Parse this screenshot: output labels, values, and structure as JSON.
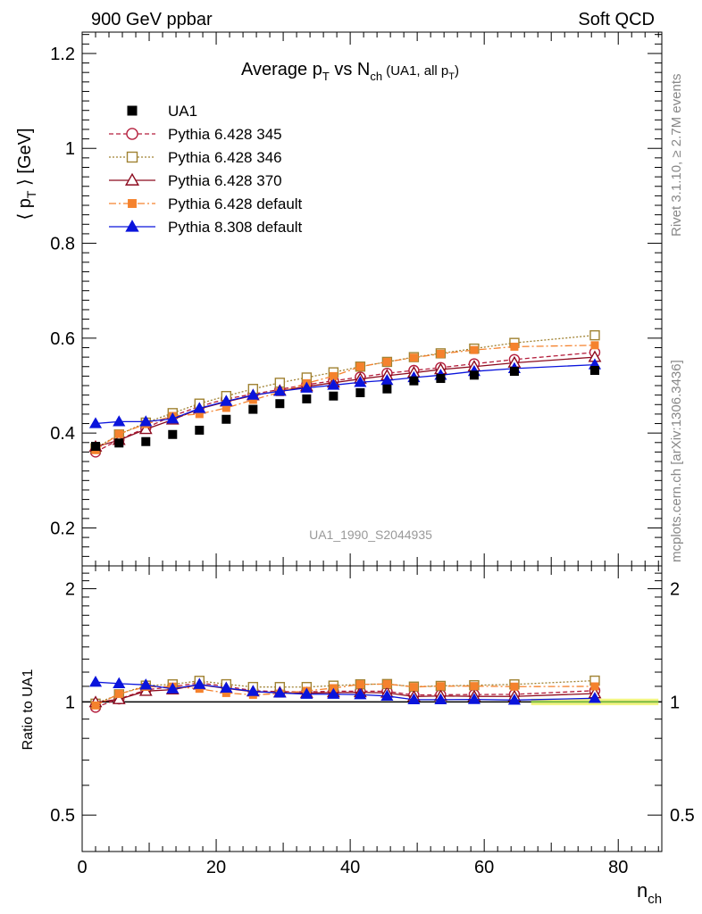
{
  "header": {
    "left": "900 GeV ppbar",
    "right": "Soft QCD"
  },
  "side_labels": {
    "rivet": "Rivet 3.1.10, ≥ 2.7M events",
    "mcplots": "mcplots.cern.ch [arXiv:1306.3436]"
  },
  "chart_data": {
    "type": "line",
    "title": "Average p_T vs N_ch (UA1, all p_T)",
    "title_parts": {
      "main": "Average p",
      "main_sub": "T",
      "mid": " vs N",
      "mid_sub": "ch",
      "small": " (UA1, all p",
      "small_sub": "T",
      "small_end": ")"
    },
    "analysis_label": "UA1_1990_S2044935",
    "xlabel": "n_ch",
    "xlabel_parts": {
      "main": "n",
      "sub": "ch"
    },
    "ylabel": "⟨ p_T ⟩ [GeV]",
    "ylabel_parts": {
      "pre": "⟨ p",
      "sub": "T",
      "post": " ⟩ [GeV]"
    },
    "ratio_ylabel": "Ratio to UA1",
    "xlim": [
      0,
      86.5
    ],
    "ylim": [
      0.12,
      1.245
    ],
    "ratio_ylim": [
      0.4,
      2.3
    ],
    "x_ticks": [
      "0",
      "20",
      "40",
      "60",
      "80"
    ],
    "y_ticks": [
      "0.2",
      "0.4",
      "0.6",
      "0.8",
      "1",
      "1.2"
    ],
    "ratio_ticks": [
      "0.5",
      "1",
      "2"
    ],
    "legend_position": "top-left",
    "data": {
      "name": "UA1",
      "x": [
        2,
        5.5,
        9.5,
        13.5,
        17.5,
        21.5,
        25.5,
        29.5,
        33.5,
        37.5,
        41.5,
        45.5,
        49.5,
        53.5,
        58.5,
        64.5,
        76.5
      ],
      "y": [
        0.372,
        0.379,
        0.382,
        0.397,
        0.406,
        0.429,
        0.45,
        0.462,
        0.472,
        0.478,
        0.485,
        0.493,
        0.51,
        0.515,
        0.522,
        0.53,
        0.532
      ]
    },
    "band": {
      "x": [
        67,
        86
      ],
      "lo": 0.98,
      "hi": 1.02
    },
    "series": [
      {
        "name": "Pythia 6.428 345",
        "color": "#b41e3c",
        "dash": "5,3",
        "marker": "circle-open",
        "y": [
          0.36,
          0.386,
          0.411,
          0.436,
          0.456,
          0.472,
          0.482,
          0.492,
          0.502,
          0.51,
          0.518,
          0.526,
          0.532,
          0.538,
          0.546,
          0.555,
          0.57
        ]
      },
      {
        "name": "Pythia 6.428 346",
        "color": "#a08232",
        "dash": "2,2",
        "marker": "square-open",
        "y": [
          0.368,
          0.397,
          0.422,
          0.442,
          0.462,
          0.478,
          0.493,
          0.506,
          0.517,
          0.528,
          0.54,
          0.55,
          0.56,
          0.568,
          0.578,
          0.59,
          0.606
        ]
      },
      {
        "name": "Pythia 6.428 370",
        "color": "#8c0a1e",
        "dash": "none",
        "marker": "triangle-open",
        "y": [
          0.371,
          0.385,
          0.408,
          0.428,
          0.451,
          0.466,
          0.479,
          0.489,
          0.498,
          0.506,
          0.514,
          0.521,
          0.527,
          0.534,
          0.54,
          0.548,
          0.56
        ]
      },
      {
        "name": "Pythia 6.428 default",
        "color": "#f5822d",
        "dash": "8,3,2,3",
        "marker": "square-filled",
        "y": [
          0.364,
          0.398,
          0.419,
          0.436,
          0.44,
          0.453,
          0.47,
          0.486,
          0.505,
          0.52,
          0.54,
          0.55,
          0.559,
          0.567,
          0.575,
          0.582,
          0.585
        ]
      },
      {
        "name": "Pythia 8.308 default",
        "color": "#0a14dc",
        "dash": "none",
        "marker": "triangle-filled",
        "y": [
          0.42,
          0.424,
          0.424,
          0.43,
          0.452,
          0.467,
          0.48,
          0.488,
          0.495,
          0.501,
          0.507,
          0.511,
          0.517,
          0.522,
          0.53,
          0.536,
          0.544
        ]
      }
    ]
  }
}
